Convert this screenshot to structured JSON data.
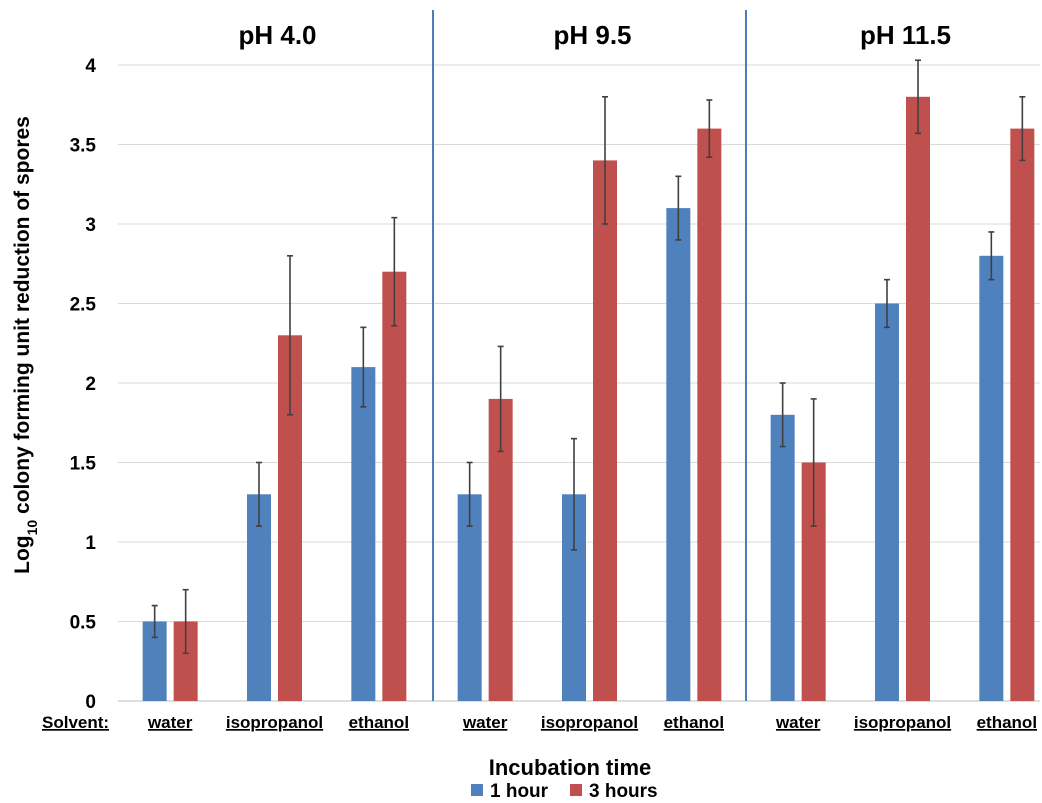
{
  "chart_data": {
    "type": "bar",
    "ylabel_prefix": "Log",
    "ylabel_sub": "10",
    "ylabel_rest": " colony forming unit reduction of spores",
    "xlabel": "Incubation time",
    "solvent_label": "Solvent:",
    "ylim": [
      0,
      4
    ],
    "yticks": [
      "0",
      "0.5",
      "1",
      "1.5",
      "2",
      "2.5",
      "3",
      "3.5",
      "4"
    ],
    "grid": true,
    "legend_position": "bottom-center",
    "colors": {
      "1 hour": "#4f81bd",
      "3 hours": "#c0504d"
    },
    "groups": [
      {
        "title": "pH 4.0",
        "categories": [
          "water",
          "isopropanol",
          "ethanol"
        ],
        "series": [
          {
            "name": "1 hour",
            "values": [
              0.5,
              1.3,
              2.1
            ],
            "errors": [
              0.1,
              0.2,
              0.25
            ]
          },
          {
            "name": "3 hours",
            "values": [
              0.5,
              2.3,
              2.7
            ],
            "errors": [
              0.2,
              0.5,
              0.34
            ]
          }
        ]
      },
      {
        "title": "pH 9.5",
        "categories": [
          "water",
          "isopropanol",
          "ethanol"
        ],
        "series": [
          {
            "name": "1 hour",
            "values": [
              1.3,
              1.3,
              3.1
            ],
            "errors": [
              0.2,
              0.35,
              0.2
            ]
          },
          {
            "name": "3 hours",
            "values": [
              1.9,
              3.4,
              3.6
            ],
            "errors": [
              0.33,
              0.4,
              0.18
            ]
          }
        ]
      },
      {
        "title": "pH 11.5",
        "categories": [
          "water",
          "isopropanol",
          "ethanol"
        ],
        "series": [
          {
            "name": "1 hour",
            "values": [
              1.8,
              2.5,
              2.8
            ],
            "errors": [
              0.2,
              0.15,
              0.15
            ]
          },
          {
            "name": "3 hours",
            "values": [
              1.5,
              3.8,
              3.6
            ],
            "errors": [
              0.4,
              0.23,
              0.2
            ]
          }
        ]
      }
    ],
    "legend": [
      "1 hour",
      "3 hours"
    ]
  }
}
